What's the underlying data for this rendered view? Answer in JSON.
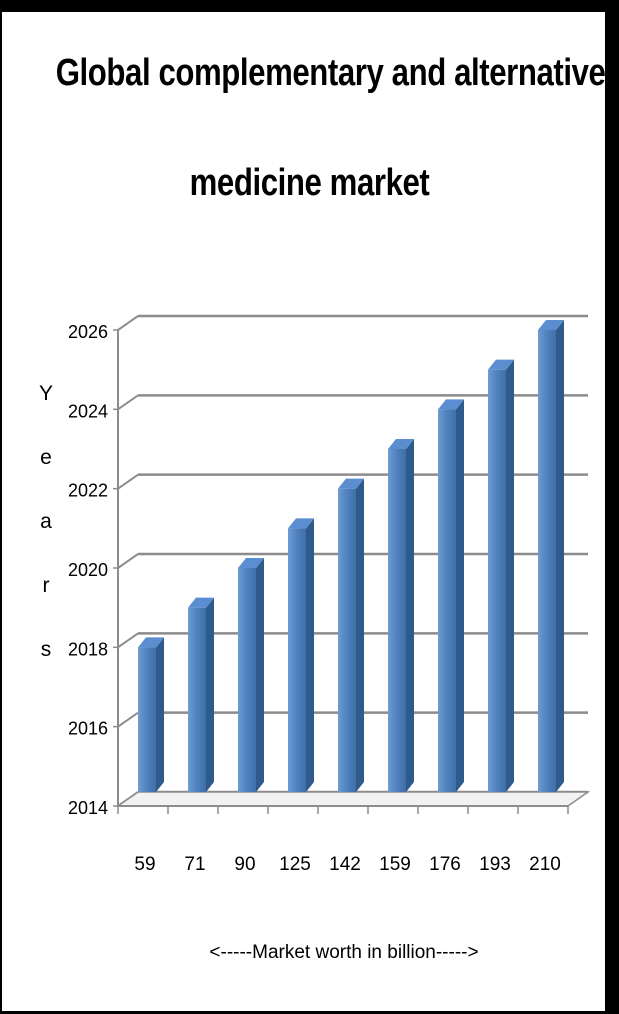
{
  "title_line1": "Global complementary and alternative",
  "title_line2": "medicine market",
  "chart_data": {
    "type": "bar",
    "title": "Global complementary and alternative medicine market",
    "categories": [
      "59",
      "71",
      "90",
      "125",
      "142",
      "159",
      "176",
      "193",
      "210"
    ],
    "values": [
      2018,
      2019,
      2020,
      2021,
      2022,
      2023,
      2024,
      2025,
      2026
    ],
    "xlabel": "<-----Market worth  in billion----->",
    "ylabel": "Years",
    "ylabel_letters": [
      "Y",
      "e",
      "a",
      "r",
      "s"
    ],
    "yticks": [
      "2014",
      "2016",
      "2018",
      "2020",
      "2022",
      "2024",
      "2026"
    ],
    "ylim": [
      2014,
      2026
    ],
    "grid": true,
    "legend": false,
    "bar_color": "#4f81bd"
  }
}
